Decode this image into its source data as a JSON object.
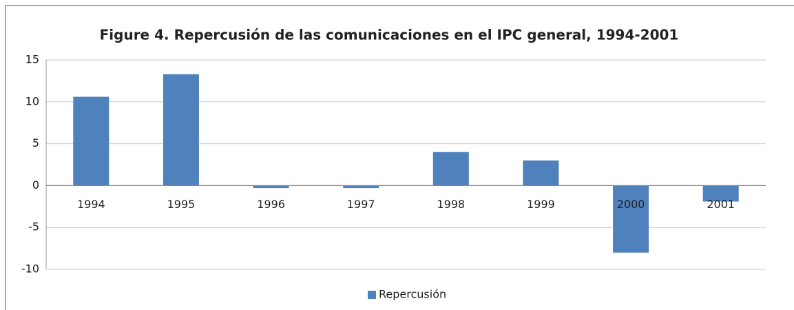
{
  "chart_data": {
    "type": "bar",
    "title": "Figure 4. Repercusión de las comunicaciones  en el IPC general, 1994-2001",
    "categories": [
      "1994",
      "1995",
      "1996",
      "1997",
      "1998",
      "1999",
      "2000",
      "2001"
    ],
    "series": [
      {
        "name": "Repercusión",
        "color": "#4f81bd",
        "values": [
          10.6,
          13.3,
          -0.3,
          -0.3,
          4.0,
          3.0,
          -8.0,
          -1.9
        ]
      }
    ],
    "ylim": [
      -10,
      15
    ],
    "yticks": [
      -10,
      -5,
      0,
      5,
      10,
      15
    ],
    "grid": true,
    "legend": "bottom"
  }
}
